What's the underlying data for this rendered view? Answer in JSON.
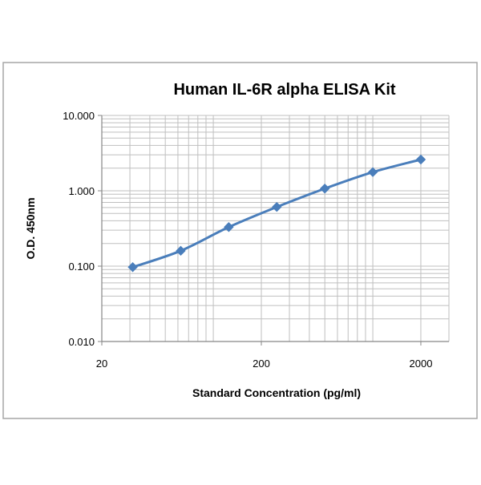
{
  "chart_data": {
    "type": "line",
    "title": "Human IL-6R alpha ELISA Kit",
    "xlabel": "Standard Concentration (pg/ml)",
    "ylabel": "O.D. 450nm",
    "x_scale": "log",
    "y_scale": "log",
    "xlim": [
      20,
      3000
    ],
    "ylim": [
      0.01,
      10
    ],
    "x_tick_labels": [
      {
        "value": 20,
        "label": "20"
      },
      {
        "value": 200,
        "label": "200"
      },
      {
        "value": 2000,
        "label": "2000"
      }
    ],
    "y_tick_labels": [
      {
        "value": 0.01,
        "label": "0.010"
      },
      {
        "value": 0.1,
        "label": "0.100"
      },
      {
        "value": 1,
        "label": "1.000"
      },
      {
        "value": 10,
        "label": "10.000"
      }
    ],
    "grid": true,
    "legend": "none",
    "series": [
      {
        "x": [
          31.25,
          62.5,
          125,
          250,
          500,
          1000,
          2000
        ],
        "y": [
          0.097,
          0.16,
          0.33,
          0.61,
          1.07,
          1.77,
          2.6
        ]
      }
    ],
    "colors": {
      "series": "#4a7ebb",
      "grid": "#bfbfbf",
      "axis": "#868686",
      "frame": "#a6a6a6"
    }
  }
}
